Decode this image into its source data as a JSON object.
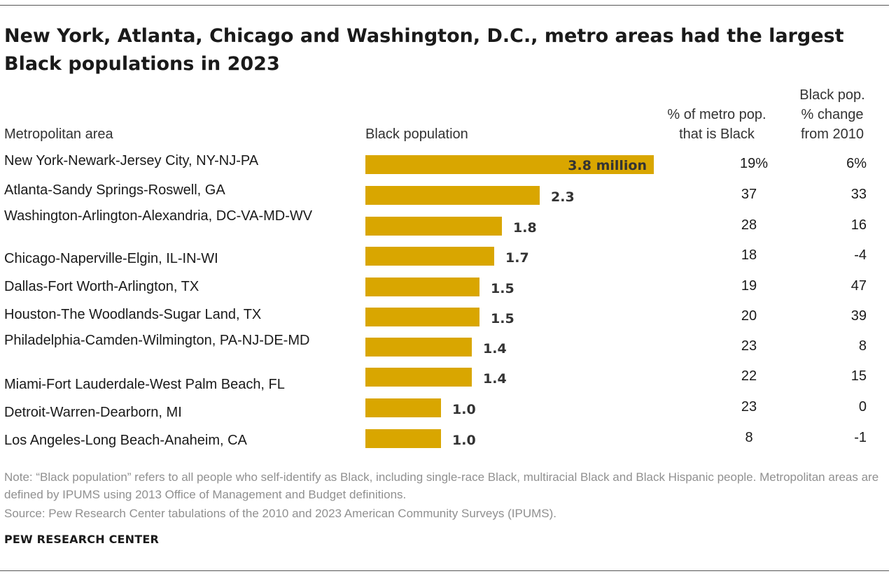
{
  "title": "New York, Atlanta, Chicago and Washington, D.C., metro areas had the largest Black populations in 2023",
  "columns": {
    "area": "Metropolitan area",
    "population": "Black population",
    "pct_line1": "% of metro pop.",
    "pct_line2": "that is Black",
    "chg_line1": "Black pop.",
    "chg_line2": "% change",
    "chg_line3": "from 2010"
  },
  "chart_data": {
    "type": "bar",
    "orientation": "horizontal",
    "categories": [
      "New York-Newark-Jersey City, NY-NJ-PA",
      "Atlanta-Sandy Springs-Roswell, GA",
      "Washington-Arlington-Alexandria, DC-VA-MD-WV",
      "Chicago-Naperville-Elgin, IL-IN-WI",
      "Dallas-Fort Worth-Arlington, TX",
      "Houston-The Woodlands-Sugar Land, TX",
      "Philadelphia-Camden-Wilmington, PA-NJ-DE-MD",
      "Miami-Fort Lauderdale-West Palm Beach, FL",
      "Detroit-Warren-Dearborn, MI",
      "Los Angeles-Long Beach-Anaheim, CA"
    ],
    "values": [
      3.8,
      2.3,
      1.8,
      1.7,
      1.5,
      1.5,
      1.4,
      1.4,
      1.0,
      1.0
    ],
    "value_labels": [
      "3.8 million",
      "2.3",
      "1.8",
      "1.7",
      "1.5",
      "1.5",
      "1.4",
      "1.4",
      "1.0",
      "1.0"
    ],
    "pct_of_metro": [
      "19%",
      "37",
      "28",
      "18",
      "19",
      "20",
      "23",
      "22",
      "23",
      "8"
    ],
    "pct_change_2010": [
      "6%",
      "33",
      "16",
      "-4",
      "47",
      "39",
      "8",
      "15",
      "0",
      "-1"
    ],
    "bar_color": "#d9a600",
    "xlim": [
      0,
      3.8
    ]
  },
  "note": "Note: “Black population” refers to all people who self-identify as Black, including single-race Black, multiracial Black and Black Hispanic people. Metropolitan areas are defined by IPUMS using 2013 Office of Management and Budget definitions.",
  "source": "Source: Pew Research Center tabulations of the 2010 and 2023 American Community Surveys (IPUMS).",
  "brand": "PEW RESEARCH CENTER"
}
